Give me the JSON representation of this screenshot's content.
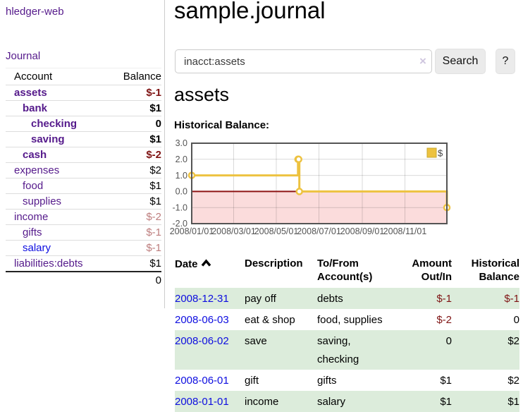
{
  "sidebar": {
    "brand": "hledger-web",
    "nav_journal": "Journal",
    "table": {
      "col_account": "Account",
      "col_balance": "Balance",
      "rows": [
        {
          "name": "assets",
          "balance": "$-1"
        },
        {
          "name": "bank",
          "balance": "$1"
        },
        {
          "name": "checking",
          "balance": "0"
        },
        {
          "name": "saving",
          "balance": "$1"
        },
        {
          "name": "cash",
          "balance": "$-2"
        },
        {
          "name": "expenses",
          "balance": "$2"
        },
        {
          "name": "food",
          "balance": "$1"
        },
        {
          "name": "supplies",
          "balance": "$1"
        },
        {
          "name": "income",
          "balance": "$-2"
        },
        {
          "name": "gifts",
          "balance": "$-1"
        },
        {
          "name": "salary",
          "balance": "$-1"
        },
        {
          "name": "liabilities:debts",
          "balance": "$1"
        }
      ],
      "total": "0"
    }
  },
  "main": {
    "title": "sample.journal",
    "search": {
      "value": "inacct:assets",
      "clear": "×",
      "button_label": "Search",
      "help_label": "?"
    },
    "account_heading": "assets",
    "chart_heading": "Historical Balance:"
  },
  "chart_data": {
    "type": "line",
    "step": true,
    "title": "Historical Balance:",
    "series": [
      {
        "name": "$",
        "color": "#EDC240",
        "x": [
          "2008-01-01",
          "2008-06-01",
          "2008-06-02",
          "2008-06-03",
          "2008-12-31"
        ],
        "values": [
          1,
          2,
          2,
          0,
          -1
        ]
      }
    ],
    "xlim": [
      "2008-01-01",
      "2008-12-31"
    ],
    "ylim": [
      -2,
      3
    ],
    "yticks": [
      "3.0",
      "2.0",
      "1.0",
      "0.0",
      "-1.0",
      "-2.0"
    ],
    "xticks": [
      "2008/01/01",
      "2008/03/01",
      "2008/05/01",
      "2008/07/01",
      "2008/09/01",
      "2008/11/01"
    ],
    "legend_position": "top-right",
    "grid": true,
    "negative_region": {
      "from": 0,
      "to": -2,
      "color": "#fbdcdc",
      "zero_line_color": "#8e1414"
    }
  },
  "register": {
    "headers": {
      "date_l1": "Date",
      "desc_l1": "Description",
      "tofrom_l1": "To/From",
      "tofrom_l2": "Account(s)",
      "amount_l1": "Amount",
      "amount_l2": "Out/In",
      "hist_l1": "Historical",
      "hist_l2": "Balance"
    },
    "rows": [
      {
        "date": "2008-12-31",
        "description": "pay off",
        "accounts": [
          "debts"
        ],
        "amount": "$-1",
        "balance": "$-1"
      },
      {
        "date": "2008-06-03",
        "description": "eat & shop",
        "accounts": [
          "food, supplies"
        ],
        "amount": "$-2",
        "balance": "0"
      },
      {
        "date": "2008-06-02",
        "description": "save",
        "accounts": [
          "saving,",
          "checking"
        ],
        "amount": "0",
        "balance": "$2"
      },
      {
        "date": "2008-06-01",
        "description": "gift",
        "accounts": [
          "gifts"
        ],
        "amount": "$1",
        "balance": "$2"
      },
      {
        "date": "2008-01-01",
        "description": "income",
        "accounts": [
          "salary"
        ],
        "amount": "$1",
        "balance": "$1"
      }
    ]
  }
}
